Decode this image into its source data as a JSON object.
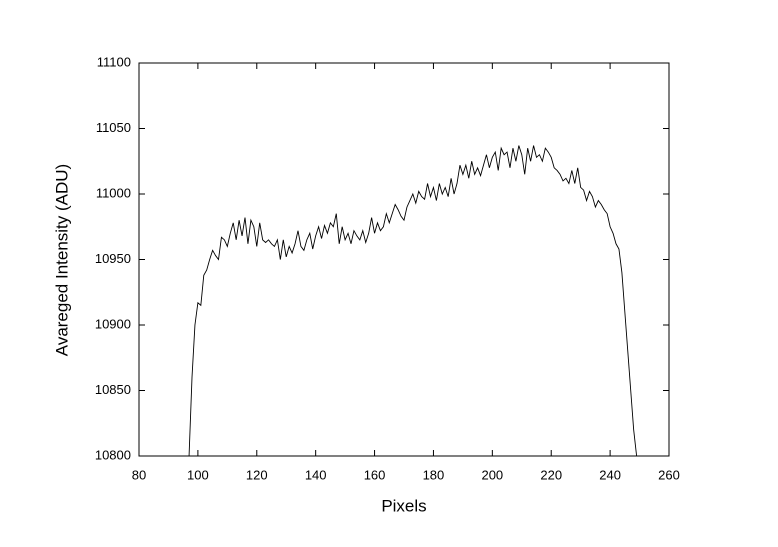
{
  "chart_data": {
    "type": "line",
    "x_label": "Pixels",
    "y_label": "Avareged Intensity (ADU)",
    "x": [
      97,
      98,
      99,
      100,
      101,
      102,
      103,
      104,
      105,
      106,
      107,
      108,
      109,
      110,
      111,
      112,
      113,
      114,
      115,
      116,
      117,
      118,
      119,
      120,
      121,
      122,
      123,
      124,
      125,
      126,
      127,
      128,
      129,
      130,
      131,
      132,
      133,
      134,
      135,
      136,
      137,
      138,
      139,
      140,
      141,
      142,
      143,
      144,
      145,
      146,
      147,
      148,
      149,
      150,
      151,
      152,
      153,
      154,
      155,
      156,
      157,
      158,
      159,
      160,
      161,
      162,
      163,
      164,
      165,
      166,
      167,
      168,
      169,
      170,
      171,
      172,
      173,
      174,
      175,
      176,
      177,
      178,
      179,
      180,
      181,
      182,
      183,
      184,
      185,
      186,
      187,
      188,
      189,
      190,
      191,
      192,
      193,
      194,
      195,
      196,
      197,
      198,
      199,
      200,
      201,
      202,
      203,
      204,
      205,
      206,
      207,
      208,
      209,
      210,
      211,
      212,
      213,
      214,
      215,
      216,
      217,
      218,
      219,
      220,
      221,
      222,
      223,
      224,
      225,
      226,
      227,
      228,
      229,
      230,
      231,
      232,
      233,
      234,
      235,
      236,
      237,
      238,
      239,
      240,
      241,
      242,
      243,
      244,
      245,
      246,
      247,
      248,
      249
    ],
    "values": [
      10800,
      10860,
      10900,
      10917,
      10915,
      10938,
      10942,
      10950,
      10957,
      10953,
      10950,
      10967,
      10965,
      10960,
      10970,
      10978,
      10965,
      10980,
      10968,
      10982,
      10962,
      10980,
      10975,
      10960,
      10978,
      10965,
      10963,
      10965,
      10962,
      10960,
      10965,
      10950,
      10965,
      10952,
      10960,
      10955,
      10962,
      10972,
      10960,
      10957,
      10965,
      10970,
      10958,
      10968,
      10975,
      10966,
      10976,
      10970,
      10978,
      10975,
      10985,
      10962,
      10975,
      10965,
      10970,
      10962,
      10972,
      10968,
      10965,
      10972,
      10963,
      10970,
      10982,
      10970,
      10978,
      10972,
      10975,
      10985,
      10978,
      10985,
      10992,
      10988,
      10983,
      10980,
      10990,
      10995,
      11000,
      10993,
      11002,
      10998,
      10996,
      11008,
      10998,
      11005,
      10995,
      11008,
      11000,
      11005,
      10998,
      11012,
      11000,
      11008,
      11022,
      11015,
      11022,
      11012,
      11025,
      11015,
      11020,
      11014,
      11022,
      11030,
      11020,
      11028,
      11032,
      11018,
      11035,
      11030,
      11032,
      11020,
      11035,
      11025,
      11037,
      11030,
      11015,
      11035,
      11025,
      11037,
      11028,
      11030,
      11025,
      11035,
      11032,
      11028,
      11020,
      11018,
      11015,
      11010,
      11012,
      11008,
      11018,
      11008,
      11020,
      11005,
      11003,
      10995,
      11002,
      10998,
      10990,
      10995,
      10992,
      10988,
      10985,
      10975,
      10970,
      10962,
      10958,
      10940,
      10910,
      10880,
      10850,
      10820,
      10800
    ],
    "color": "#000000",
    "xlim": [
      80,
      260
    ],
    "xticks": [
      80,
      100,
      120,
      140,
      160,
      180,
      200,
      220,
      240,
      260
    ],
    "ylim": [
      10800,
      11100
    ],
    "yticks": [
      10800,
      10850,
      10900,
      10950,
      11000,
      11050,
      11100
    ]
  }
}
